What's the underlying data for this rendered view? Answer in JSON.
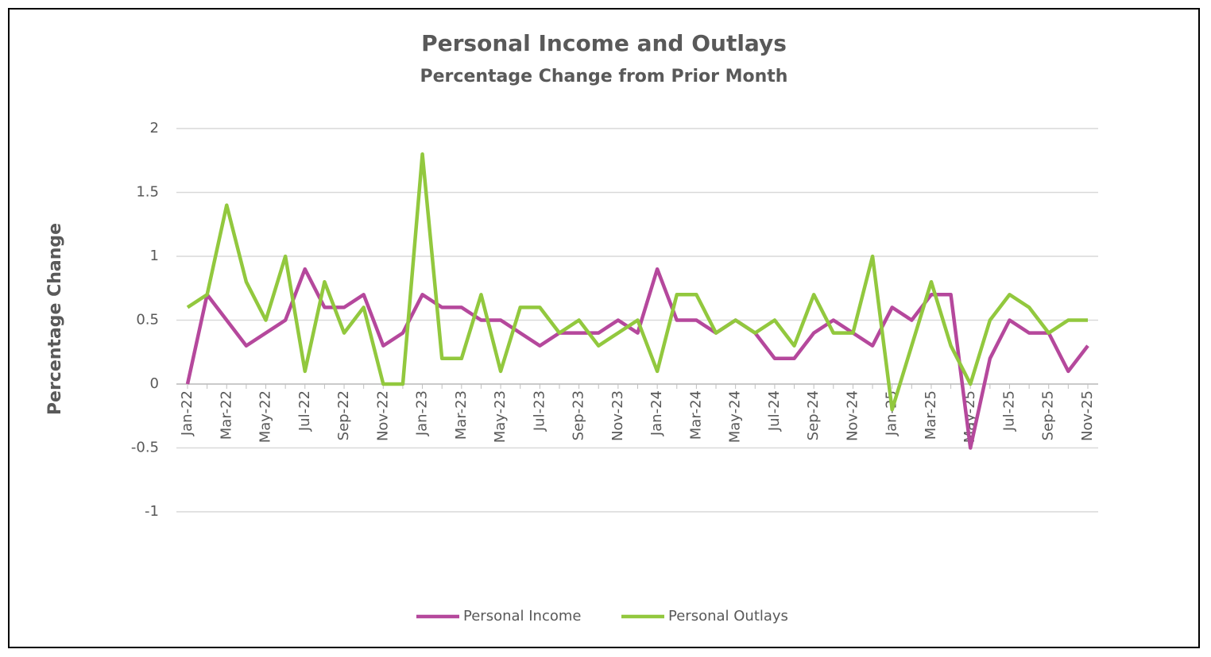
{
  "chart_data": {
    "type": "line",
    "title": "Personal Income and Outlays",
    "subtitle": "Percentage Change from Prior Month",
    "y_label": "Percentage Change",
    "categories": [
      "Jan-22",
      null,
      "Mar-22",
      null,
      "May-22",
      null,
      "Jul-22",
      null,
      "Sep-22",
      null,
      "Nov-22",
      null,
      "Jan-23",
      null,
      "Mar-23",
      null,
      "May-23",
      null,
      "Jul-23",
      null,
      "Sep-23",
      null,
      "Nov-23",
      null,
      "Jan-24",
      null,
      "Mar-24",
      null,
      "May-24",
      null,
      "Jul-24",
      null,
      "Sep-24",
      null,
      "Nov-24",
      null,
      "Jan-25",
      null,
      "Mar-25",
      null,
      "May-25",
      null,
      "Jul-25",
      null,
      "Sep-25",
      null,
      "Nov-25"
    ],
    "series": [
      {
        "name": "Personal Income",
        "color": "#b5489c",
        "values": [
          0,
          0.7,
          0.5,
          0.3,
          0.4,
          0.5,
          0.9,
          0.6,
          0.6,
          0.7,
          0.3,
          0.4,
          0.7,
          0.6,
          0.6,
          0.5,
          0.5,
          0.4,
          0.3,
          0.4,
          0.4,
          0.4,
          0.5,
          0.4,
          0.9,
          0.5,
          0.5,
          0.4,
          0.5,
          0.4,
          0.2,
          0.2,
          0.4,
          0.5,
          0.4,
          0.3,
          0.6,
          0.5,
          0.7,
          0.7,
          -0.5,
          0.2,
          0.5,
          0.4,
          0.4,
          0.1,
          0.3
        ]
      },
      {
        "name": "Personal Outlays",
        "color": "#92c83e",
        "values": [
          0.6,
          0.7,
          1.4,
          0.8,
          0.5,
          1.0,
          0.1,
          0.8,
          0.4,
          0.6,
          0,
          0,
          1.8,
          0.2,
          0.2,
          0.7,
          0.1,
          0.6,
          0.6,
          0.4,
          0.5,
          0.3,
          0.4,
          0.5,
          0.1,
          0.7,
          0.7,
          0.4,
          0.5,
          0.4,
          0.5,
          0.3,
          0.7,
          0.4,
          0.4,
          1.0,
          -0.2,
          0.3,
          0.8,
          0.3,
          0,
          0.5,
          0.7,
          0.6,
          0.4,
          0.5,
          0.5
        ]
      }
    ],
    "ylim": [
      -1,
      2
    ],
    "yticks": [
      -1,
      -0.5,
      0,
      0.5,
      1,
      1.5,
      2
    ],
    "grid": true,
    "legend": "bottom"
  }
}
